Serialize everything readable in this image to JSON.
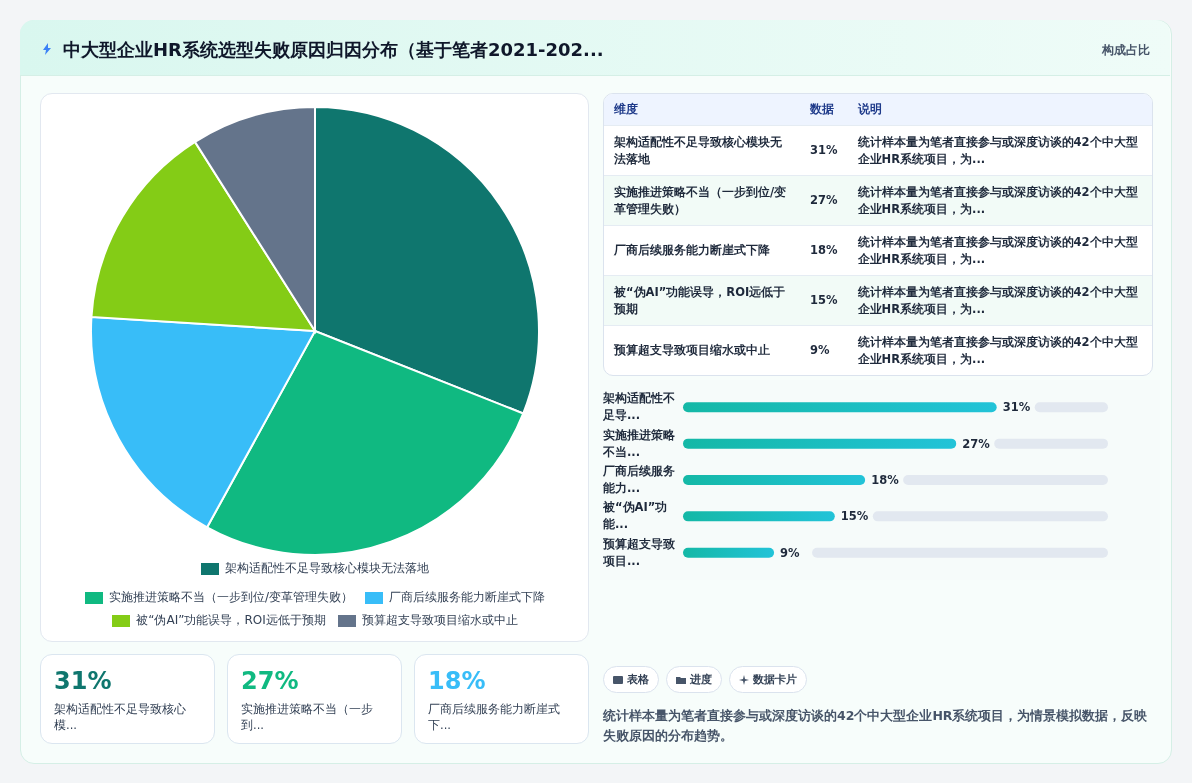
{
  "chart_data": [
    {
      "type": "other",
      "title": "中大型企业HR系统选型失败原因归因分布（基于笔者2021-202...",
      "subtitle": "构成占比"
    },
    {
      "type": "pie",
      "categories": [
        "架构适配性不足导致核心模块无法落地",
        "实施推进策略不当（一步到位/变革管理失败）",
        "厂商后续服务能力断崖式下降",
        "被“伪AI”功能误导，ROI远低于预期",
        "预算超支导致项目缩水或中止"
      ],
      "values": [
        31,
        27,
        18,
        15,
        9
      ],
      "colors": [
        "#0f766e",
        "#10b981",
        "#38bdf8",
        "#84cc16",
        "#64748b"
      ],
      "legend": "bottom"
    },
    {
      "type": "bar",
      "orientation": "horizontal",
      "categories": [
        "架构适配性不足导...",
        "实施推进策略不当...",
        "厂商后续服务能力...",
        "被“伪AI”功能...",
        "预算超支导致项目..."
      ],
      "values": [
        31,
        27,
        18,
        15,
        9
      ],
      "value_labels": [
        "31%",
        "27%",
        "18%",
        "15%",
        "9%"
      ],
      "color": "#14b8a6",
      "xlim": [
        0,
        42
      ],
      "tick_labels": "y"
    },
    {
      "type": "other",
      "annotations": [
        "维度",
        "数据",
        "说明",
        "架构适配性不足导致核心模块无法落地",
        "31%",
        "统计样本量为笔者直接参与或深度访谈的42个中大型企业HR系统项目，为...",
        "实施推进策略不当（一步到位/变革管理失败）",
        "27%",
        "统计样本量为笔者直接参与或深度访谈的42个中大型企业HR系统项目，为...",
        "厂商后续服务能力断崖式下降",
        "18%",
        "统计样本量为笔者直接参与或深度访谈的42个中大型企业HR系统项目，为...",
        "被“伪AI”功能误导，ROI远低于预期",
        "15%",
        "统计样本量为笔者直接参与或深度访谈的42个中大型企业HR系统项目，为...",
        "预算超支导致项目缩水或中止",
        "9%",
        "统计样本量为笔者直接参与或深度访谈的42个中大型企业HR系统项目，为..."
      ]
    },
    {
      "type": "other",
      "annotations": [
        "31%",
        "架构适配性不足导致核心模...",
        "27%",
        "实施推进策略不当（一步到...",
        "18%",
        "厂商后续服务能力断崖式下..."
      ],
      "colors": [
        "#0f766e",
        "#10b981",
        "#38bdf8"
      ]
    },
    {
      "type": "other",
      "annotations": [
        "表格",
        "进度",
        "数据卡片",
        "统计样本量为笔者直接参与或深度访谈的42个中大型企业HR系统项目，为情景模拟数据，反映失败原因的分布趋势。"
      ]
    }
  ]
}
